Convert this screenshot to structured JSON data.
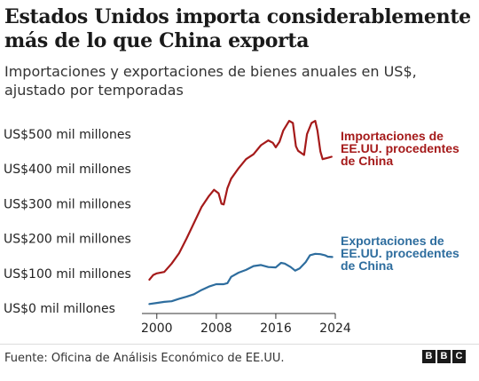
{
  "header": {
    "title": "Estados Unidos importa considerablemente más de lo que China exporta",
    "subtitle": "Importaciones y exportaciones de bienes anuales en US$, ajustado por temporadas"
  },
  "footer": {
    "source": "Fuente: Oficina de Análisis Económico de EE.UU.",
    "logo_letters": [
      "B",
      "B",
      "C"
    ]
  },
  "chart_data": {
    "type": "line",
    "xlim": [
      1998,
      2024
    ],
    "ylim": [
      0,
      500
    ],
    "yticks": [
      {
        "value": 0,
        "label": "US$0 mil millones"
      },
      {
        "value": 100,
        "label": "US$100 mil millones"
      },
      {
        "value": 200,
        "label": "US$200 mil millones"
      },
      {
        "value": 300,
        "label": "US$300 mil millones"
      },
      {
        "value": 400,
        "label": "US$400 mil millones"
      },
      {
        "value": 500,
        "label": "US$500 mil millones"
      }
    ],
    "xticks": [
      {
        "value": 2000,
        "label": "2000"
      },
      {
        "value": 2008,
        "label": "2008"
      },
      {
        "value": 2016,
        "label": "2016"
      },
      {
        "value": 2024,
        "label": "2024"
      }
    ],
    "grid": false,
    "series": [
      {
        "name": "Importaciones de EE.UU. procedentes de China",
        "label_lines": [
          "Importaciones de",
          "EE.UU. procedentes",
          "de China"
        ],
        "color": "#a51a1a",
        "points": [
          [
            1999,
            82
          ],
          [
            1999.5,
            95
          ],
          [
            2000,
            100
          ],
          [
            2001,
            104
          ],
          [
            2002,
            128
          ],
          [
            2003,
            158
          ],
          [
            2004,
            200
          ],
          [
            2005,
            245
          ],
          [
            2006,
            290
          ],
          [
            2007,
            322
          ],
          [
            2007.7,
            340
          ],
          [
            2008.3,
            330
          ],
          [
            2008.7,
            300
          ],
          [
            2009,
            298
          ],
          [
            2009.5,
            345
          ],
          [
            2010,
            372
          ],
          [
            2011,
            402
          ],
          [
            2012,
            428
          ],
          [
            2013,
            442
          ],
          [
            2014,
            468
          ],
          [
            2015,
            482
          ],
          [
            2015.6,
            475
          ],
          [
            2016,
            462
          ],
          [
            2016.5,
            478
          ],
          [
            2017,
            510
          ],
          [
            2017.8,
            538
          ],
          [
            2018.3,
            532
          ],
          [
            2018.7,
            465
          ],
          [
            2019,
            452
          ],
          [
            2019.8,
            440
          ],
          [
            2020.2,
            500
          ],
          [
            2020.8,
            532
          ],
          [
            2021.3,
            538
          ],
          [
            2021.6,
            510
          ],
          [
            2022,
            450
          ],
          [
            2022.3,
            428
          ],
          [
            2023,
            432
          ],
          [
            2023.5,
            435
          ]
        ]
      },
      {
        "name": "Exportaciones de EE.UU. procedentes de China",
        "label_lines": [
          "Exportaciones de",
          "EE.UU. procedentes",
          "de China"
        ],
        "color": "#2e6d9e",
        "points": [
          [
            1999,
            12
          ],
          [
            2000,
            15
          ],
          [
            2001,
            18
          ],
          [
            2002,
            20
          ],
          [
            2003,
            27
          ],
          [
            2004,
            33
          ],
          [
            2005,
            40
          ],
          [
            2006,
            52
          ],
          [
            2007,
            62
          ],
          [
            2008,
            69
          ],
          [
            2009,
            69
          ],
          [
            2009.5,
            72
          ],
          [
            2010,
            90
          ],
          [
            2011,
            102
          ],
          [
            2012,
            110
          ],
          [
            2013,
            121
          ],
          [
            2014,
            124
          ],
          [
            2015,
            118
          ],
          [
            2016,
            117
          ],
          [
            2016.7,
            130
          ],
          [
            2017.2,
            128
          ],
          [
            2018,
            118
          ],
          [
            2018.6,
            108
          ],
          [
            2019.2,
            114
          ],
          [
            2020,
            132
          ],
          [
            2020.6,
            152
          ],
          [
            2021.3,
            156
          ],
          [
            2022,
            155
          ],
          [
            2022.6,
            152
          ],
          [
            2023,
            148
          ],
          [
            2023.6,
            147
          ]
        ]
      }
    ]
  }
}
